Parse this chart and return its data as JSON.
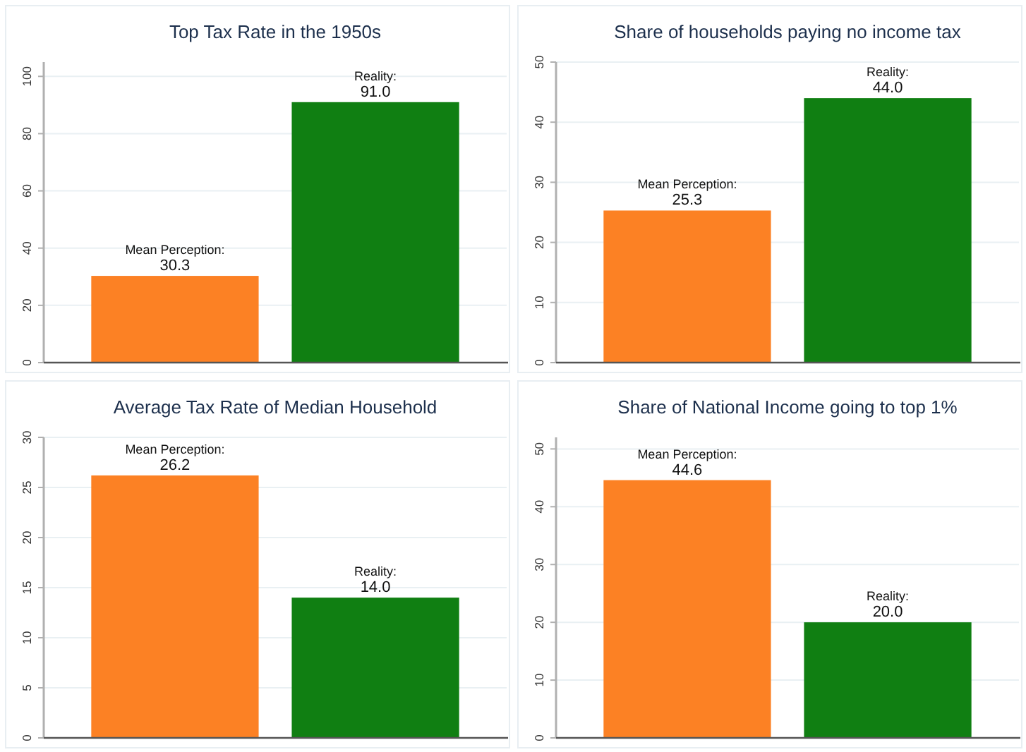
{
  "chart_data": [
    {
      "type": "bar",
      "title": "Top Tax Rate in the 1950s",
      "categories": [
        null,
        null
      ],
      "values": [
        30.3,
        91.0
      ],
      "colors": [
        "#fc8124",
        "#107f12"
      ],
      "value_labels": [
        "Mean Perception:\n30.3",
        "Reality:\n91.0"
      ],
      "ylim": [
        0,
        105
      ],
      "yticks": [
        0,
        20,
        40,
        60,
        80,
        100
      ],
      "grid": "y"
    },
    {
      "type": "bar",
      "title": "Share of households paying no income tax",
      "categories": [
        null,
        null
      ],
      "values": [
        25.3,
        44.0
      ],
      "colors": [
        "#fc8124",
        "#107f12"
      ],
      "value_labels": [
        "Mean Perception:\n25.3",
        "Reality:\n44.0"
      ],
      "ylim": [
        0,
        50
      ],
      "yticks": [
        0,
        10,
        20,
        30,
        40,
        50
      ],
      "grid": "y"
    },
    {
      "type": "bar",
      "title": "Average Tax Rate of Median Household",
      "categories": [
        null,
        null
      ],
      "values": [
        26.2,
        14.0
      ],
      "colors": [
        "#fc8124",
        "#107f12"
      ],
      "value_labels": [
        "Mean Perception:\n26.2",
        "Reality:\n14.0"
      ],
      "ylim": [
        0,
        30
      ],
      "yticks": [
        0,
        5,
        10,
        15,
        20,
        25,
        30
      ],
      "grid": "y"
    },
    {
      "type": "bar",
      "title": "Share of National Income going to top 1%",
      "categories": [
        null,
        null
      ],
      "values": [
        44.6,
        20.0
      ],
      "colors": [
        "#fc8124",
        "#107f12"
      ],
      "value_labels": [
        "Mean Perception:\n44.6",
        "Reality:\n20.0"
      ],
      "ylim": [
        0,
        52
      ],
      "yticks": [
        0,
        10,
        20,
        30,
        40,
        50
      ],
      "grid": "y"
    }
  ]
}
